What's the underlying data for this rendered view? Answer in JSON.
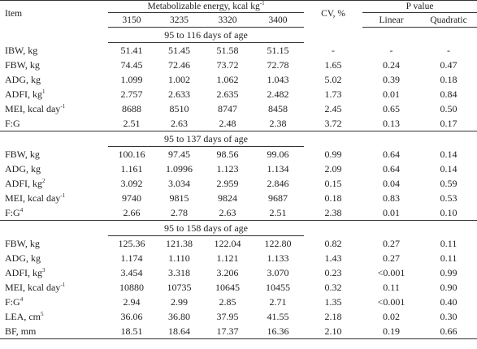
{
  "header": {
    "item": "Item",
    "me_group": "Metabolizable energy, kcal kg",
    "me_group_sup": "-1",
    "cv": "CV, %",
    "p_group": "P value",
    "levels": [
      "3150",
      "3235",
      "3320",
      "3400"
    ],
    "linear": "Linear",
    "quadratic": "Quadratic"
  },
  "sections": [
    {
      "title": "95 to 116 days of age",
      "rows": [
        {
          "item": "IBW, kg",
          "sup": "",
          "v": [
            "51.41",
            "51.45",
            "51.58",
            "51.15"
          ],
          "cv": "-",
          "lin": "-",
          "quad": "-"
        },
        {
          "item": "FBW, kg",
          "sup": "",
          "v": [
            "74.45",
            "72.46",
            "73.72",
            "72.78"
          ],
          "cv": "1.65",
          "lin": "0.24",
          "quad": "0.47"
        },
        {
          "item": "ADG, kg",
          "sup": "",
          "v": [
            "1.099",
            "1.002",
            "1.062",
            "1.043"
          ],
          "cv": "5.02",
          "lin": "0.39",
          "quad": "0.18"
        },
        {
          "item": "ADFI, kg",
          "sup": "1",
          "v": [
            "2.757",
            "2.633",
            "2.635",
            "2.482"
          ],
          "cv": "1.73",
          "lin": "0.01",
          "quad": "0.84"
        },
        {
          "item": "MEI, kcal day",
          "sup": "-1",
          "v": [
            "8688",
            "8510",
            "8747",
            "8458"
          ],
          "cv": "2.45",
          "lin": "0.65",
          "quad": "0.50"
        },
        {
          "item": "F:G",
          "sup": "",
          "v": [
            "2.51",
            "2.63",
            "2.48",
            "2.38"
          ],
          "cv": "3.72",
          "lin": "0.13",
          "quad": "0.17"
        }
      ]
    },
    {
      "title": "95 to 137 days of age",
      "rows": [
        {
          "item": "FBW, kg",
          "sup": "",
          "v": [
            "100.16",
            "97.45",
            "98.56",
            "99.06"
          ],
          "cv": "0.99",
          "lin": "0.64",
          "quad": "0.14"
        },
        {
          "item": "ADG, kg",
          "sup": "",
          "v": [
            "1.161",
            "1.0996",
            "1.123",
            "1.134"
          ],
          "cv": "2.09",
          "lin": "0.64",
          "quad": "0.14"
        },
        {
          "item": "ADFI, kg",
          "sup": "2",
          "v": [
            "3.092",
            "3.034",
            "2.959",
            "2.846"
          ],
          "cv": "0.15",
          "lin": "0.04",
          "quad": "0.59"
        },
        {
          "item": "MEI, kcal day",
          "sup": "-1",
          "v": [
            "9740",
            "9815",
            "9824",
            "9687"
          ],
          "cv": "0.18",
          "lin": "0.83",
          "quad": "0.53"
        },
        {
          "item": "F:G",
          "sup": "4",
          "v": [
            "2.66",
            "2.78",
            "2.63",
            "2.51"
          ],
          "cv": "2.38",
          "lin": "0.01",
          "quad": "0.10"
        }
      ]
    },
    {
      "title": "95 to 158 days of age",
      "rows": [
        {
          "item": "FBW, kg",
          "sup": "",
          "v": [
            "125.36",
            "121.38",
            "122.04",
            "122.80"
          ],
          "cv": "0.82",
          "lin": "0.27",
          "quad": "0.11"
        },
        {
          "item": "ADG, kg",
          "sup": "",
          "v": [
            "1.174",
            "1.110",
            "1.121",
            "1.133"
          ],
          "cv": "1.43",
          "lin": "0.27",
          "quad": "0.11"
        },
        {
          "item": "ADFI, kg",
          "sup": "3",
          "v": [
            "3.454",
            "3.318",
            "3.206",
            "3.070"
          ],
          "cv": "0.23",
          "lin": "<0.001",
          "quad": "0.99"
        },
        {
          "item": "MEI, kcal day",
          "sup": "-1",
          "v": [
            "10880",
            "10735",
            "10645",
            "10455"
          ],
          "cv": "0.32",
          "lin": "0.11",
          "quad": "0.90"
        },
        {
          "item": "F:G",
          "sup": "4",
          "v": [
            "2.94",
            "2.99",
            "2.85",
            "2.71"
          ],
          "cv": "1.35",
          "lin": "<0.001",
          "quad": "0.40"
        },
        {
          "item": "LEA, cm",
          "sup": "5",
          "v": [
            "36.06",
            "36.80",
            "37.95",
            "41.55"
          ],
          "cv": "2.18",
          "lin": "0.02",
          "quad": "0.30"
        },
        {
          "item": "BF, mm",
          "sup": "",
          "v": [
            "18.51",
            "18.64",
            "17.37",
            "16.36"
          ],
          "cv": "2.10",
          "lin": "0.19",
          "quad": "0.66"
        }
      ]
    }
  ]
}
